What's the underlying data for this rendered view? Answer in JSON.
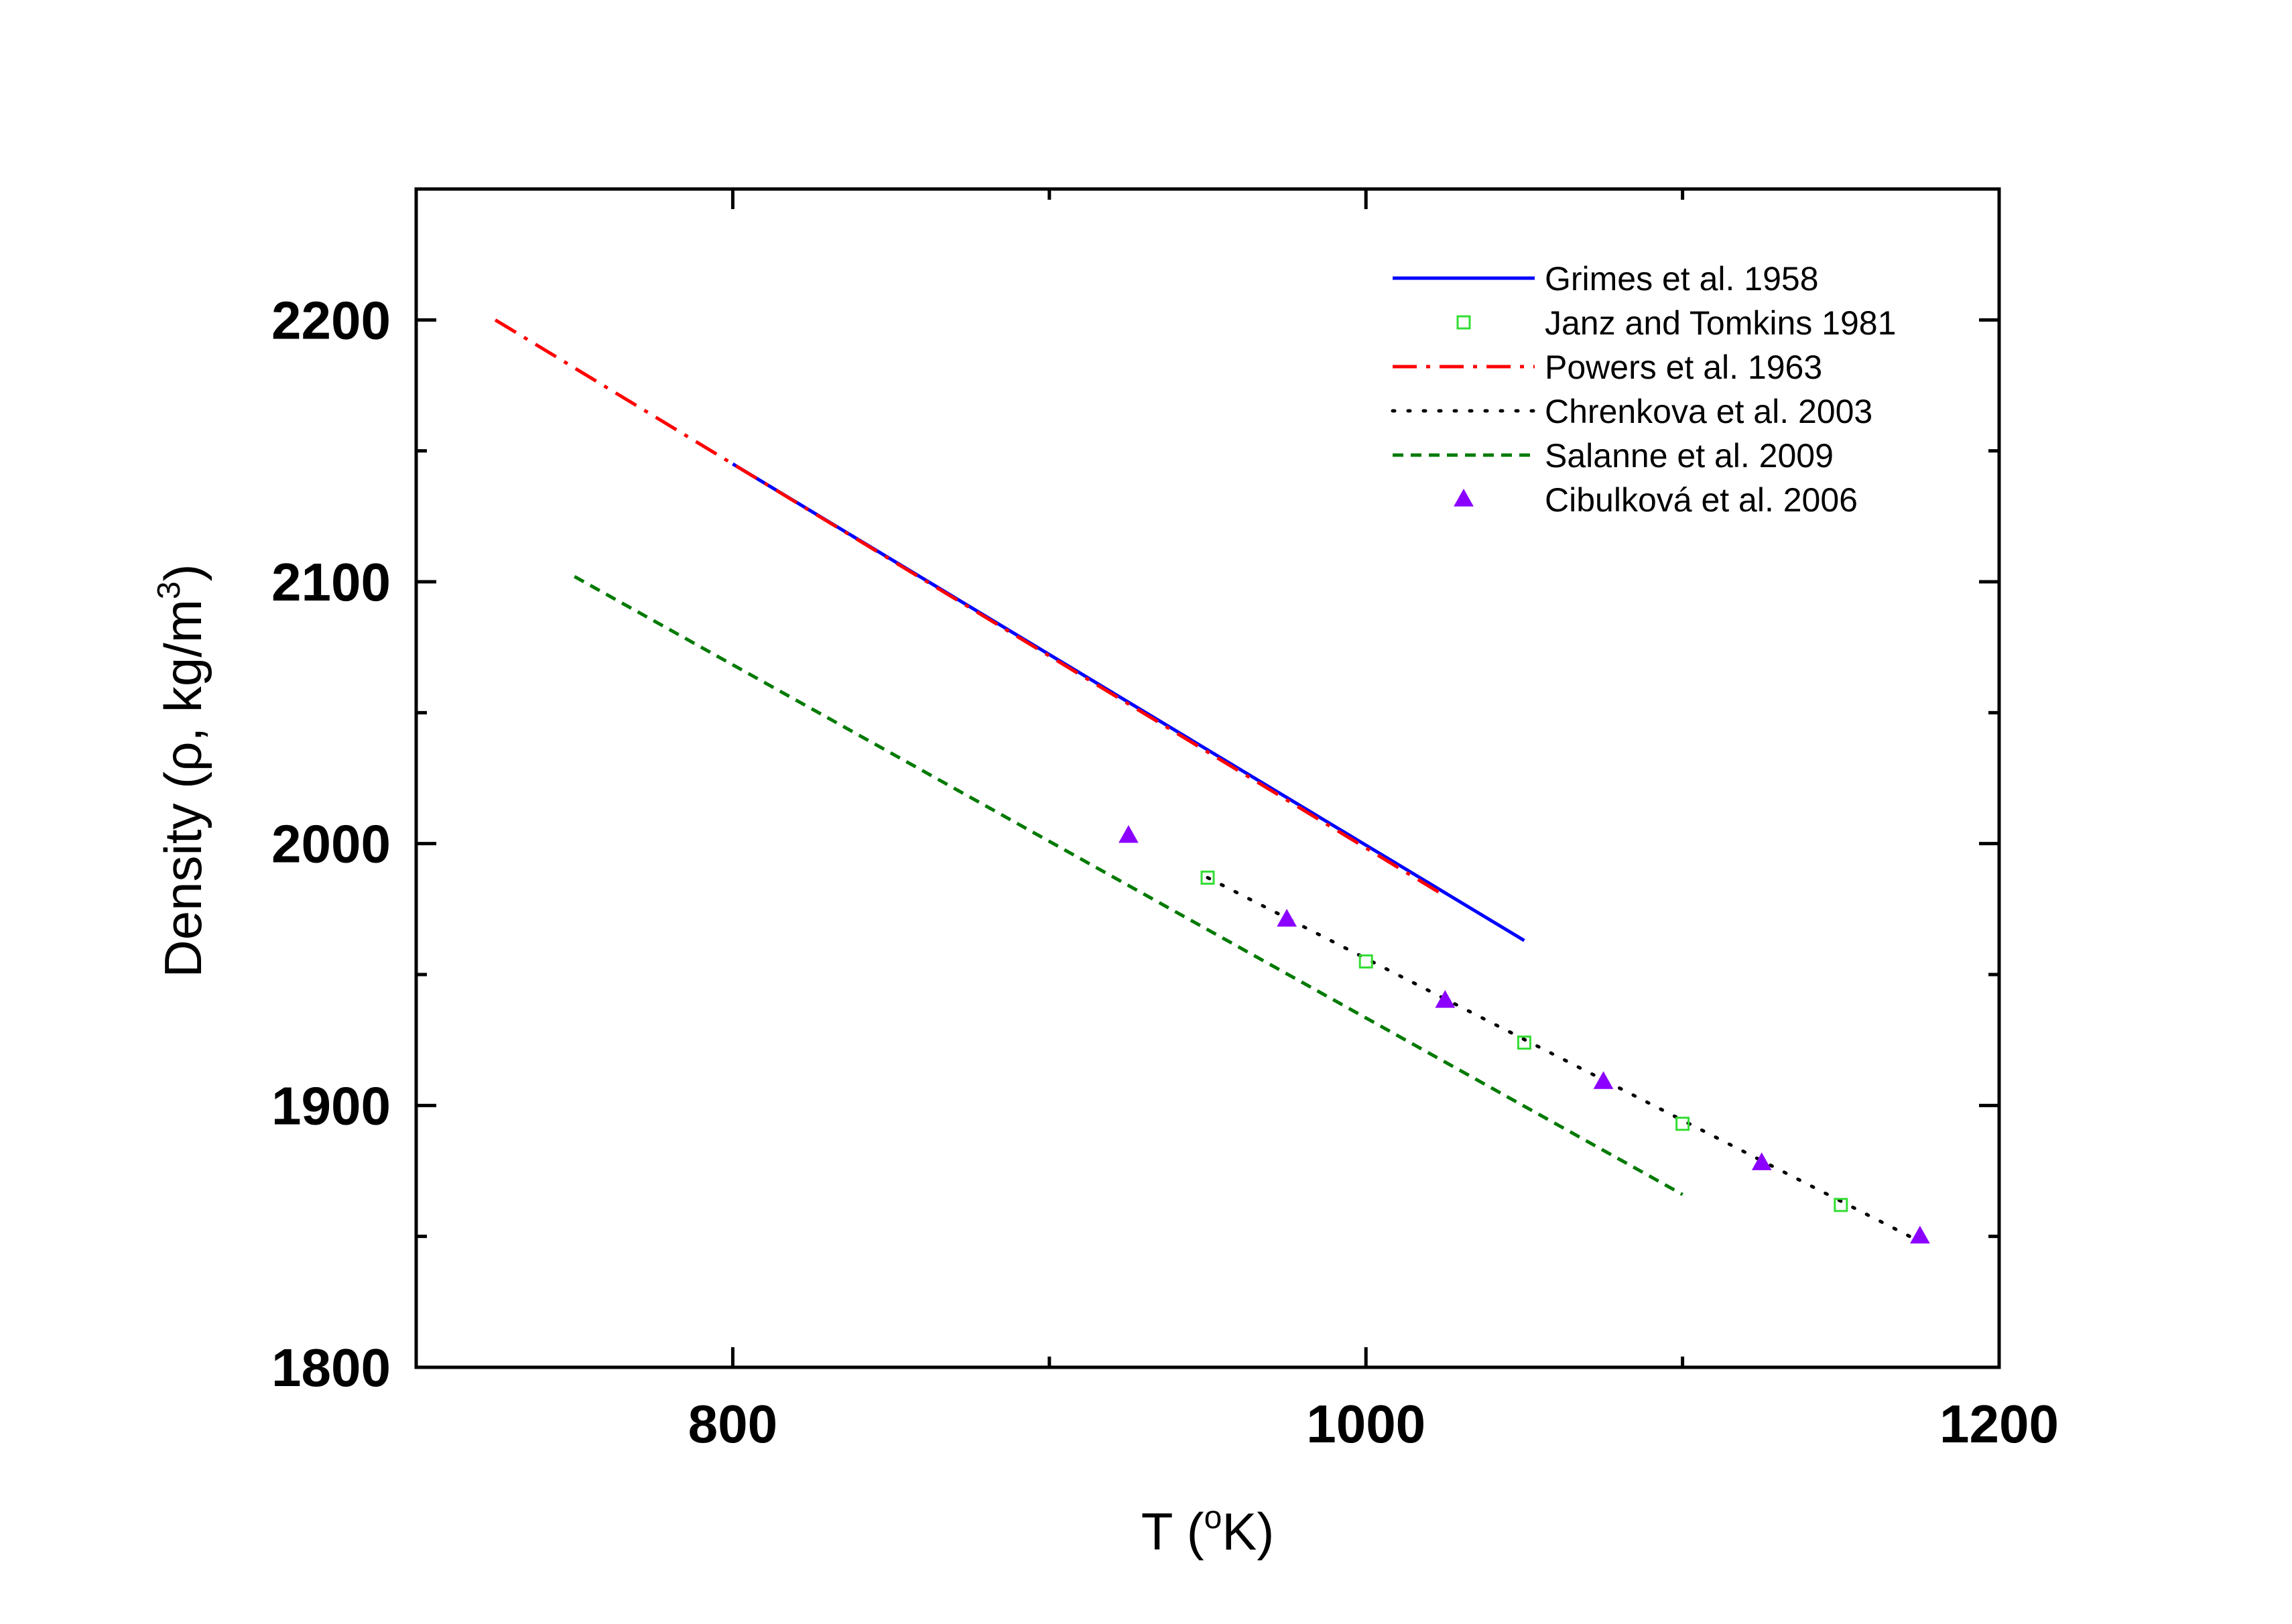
{
  "chart_data": {
    "type": "line",
    "title": "",
    "xlabel": {
      "pre": "T (",
      "sup": "o",
      "post": "K)"
    },
    "ylabel": {
      "pre": "Density (ρ, kg/m",
      "sup": "3",
      "post": ")"
    },
    "xlim": [
      700,
      1200
    ],
    "ylim": [
      1800,
      2250
    ],
    "x_ticks": [
      800,
      1000,
      1200
    ],
    "x_minor_ticks": [
      900,
      1100
    ],
    "y_ticks": [
      1800,
      1900,
      2000,
      2100,
      2200
    ],
    "y_minor_ticks": [
      1850,
      1950,
      2050,
      2150
    ],
    "grid": false,
    "legend_position": "top-right",
    "series": [
      {
        "name": "Grimes et al. 1958",
        "style": "solid",
        "color": "#0000ff",
        "x": [
          800,
          1050
        ],
        "y": [
          2145,
          1963
        ]
      },
      {
        "name": "Janz and Tomkins 1981",
        "style": "open-square",
        "color": "#33dd33",
        "x": [
          950,
          1000,
          1050,
          1100,
          1150
        ],
        "y": [
          1987,
          1955,
          1924,
          1893,
          1862
        ]
      },
      {
        "name": "Powers et al. 1963",
        "style": "dashdot",
        "color": "#ff0000",
        "x": [
          725,
          1025
        ],
        "y": [
          2200,
          1980
        ]
      },
      {
        "name": "Chrenkova et al. 2003",
        "style": "dotted",
        "color": "#000000",
        "x": [
          950,
          1175
        ],
        "y": [
          1987,
          1848
        ]
      },
      {
        "name": "Salanne et al. 2009",
        "style": "dashed",
        "color": "#007a00",
        "x": [
          750,
          1100
        ],
        "y": [
          2102,
          1866
        ]
      },
      {
        "name": "Cibulková et al. 2006",
        "style": "filled-triangle",
        "color": "#8b00ff",
        "x": [
          925,
          975,
          1025,
          1075,
          1125,
          1175
        ],
        "y": [
          2003,
          1971,
          1940,
          1909,
          1878,
          1850
        ]
      }
    ]
  }
}
